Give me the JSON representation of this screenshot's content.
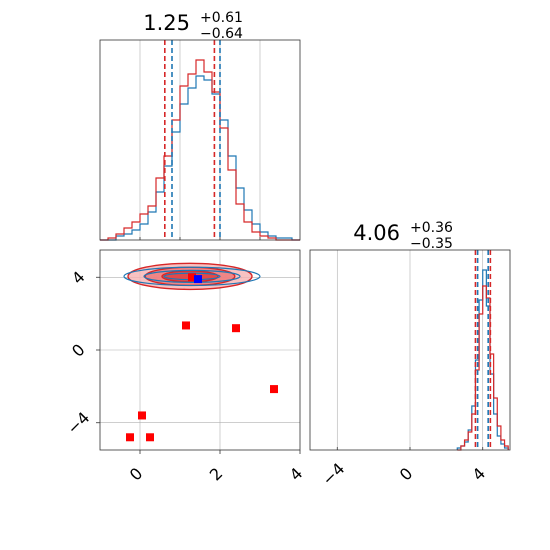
{
  "chart_data": {
    "type": "corner",
    "colors": {
      "blue": "#1f77b4",
      "red": "#d62728",
      "marker_blue": "#0000ff",
      "marker_red": "#ff0000",
      "grid": "#b0b0b0"
    },
    "panels": {
      "p1_hist": {
        "title": {
          "median": "1.25",
          "plus": "+0.61",
          "minus": "−0.64"
        },
        "xlim": [
          -1,
          4
        ],
        "quantile_lines_blue": [
          0.8,
          2.0
        ],
        "quantile_lines_red": [
          0.62,
          1.86
        ],
        "bins": [
          -1.0,
          -0.8,
          -0.6,
          -0.4,
          -0.2,
          0.0,
          0.2,
          0.4,
          0.6,
          0.8,
          1.0,
          1.2,
          1.4,
          1.6,
          1.8,
          2.0,
          2.2,
          2.4,
          2.6,
          2.8,
          3.0,
          3.2,
          3.4,
          3.6,
          3.8,
          4.0
        ],
        "series": [
          {
            "color": "blue",
            "counts": [
              0,
              0,
              2,
              3,
              5,
              8,
              14,
              24,
              37,
              54,
              68,
              76,
              82,
              80,
              73,
              60,
              42,
              26,
              15,
              8,
              4,
              2,
              1,
              1,
              0
            ]
          },
          {
            "color": "red",
            "counts": [
              0,
              1,
              3,
              6,
              9,
              13,
              17,
              31,
              42,
              60,
              77,
              83,
              90,
              84,
              74,
              56,
              35,
              18,
              9,
              4,
              2,
              1,
              0,
              0,
              0
            ]
          }
        ]
      },
      "p2_hist": {
        "title": {
          "median": "4.06",
          "plus": "+0.36",
          "minus": "−0.35"
        },
        "xlim": [
          -5.5,
          5.5
        ],
        "xticks": [
          "−4",
          "0",
          "4"
        ],
        "quantile_lines_blue": [
          3.72,
          4.3
        ],
        "quantile_lines_red": [
          3.6,
          4.42
        ],
        "bins": [
          2.6,
          2.8,
          3.0,
          3.2,
          3.4,
          3.6,
          3.8,
          4.0,
          4.2,
          4.4,
          4.6,
          4.8,
          5.0,
          5.2,
          5.4
        ],
        "series": [
          {
            "color": "blue",
            "counts": [
              1,
              2,
              4,
              10,
              22,
              45,
              75,
              90,
              72,
              38,
              18,
              7,
              3,
              1
            ]
          },
          {
            "color": "red",
            "counts": [
              0,
              2,
              5,
              9,
              18,
              40,
              68,
              82,
              76,
              48,
              26,
              12,
              5,
              2
            ]
          }
        ]
      },
      "p3_scatter": {
        "xlim": [
          -1,
          4
        ],
        "ylim": [
          -5.5,
          5.5
        ],
        "xticks": [
          "0",
          "2",
          "4"
        ],
        "yticks": [
          "−4",
          "0",
          "4"
        ],
        "contours_red": [
          {
            "cx": 1.25,
            "cy": 4.05,
            "rx": 1.55,
            "ry": 0.72
          },
          {
            "cx": 1.25,
            "cy": 4.05,
            "rx": 1.12,
            "ry": 0.5
          },
          {
            "cx": 1.25,
            "cy": 4.05,
            "rx": 0.7,
            "ry": 0.3
          }
        ],
        "contours_blue": [
          {
            "cx": 1.3,
            "cy": 4.05,
            "rx": 1.7,
            "ry": 0.5
          },
          {
            "cx": 1.3,
            "cy": 4.05,
            "rx": 1.2,
            "ry": 0.33
          },
          {
            "cx": 1.3,
            "cy": 4.05,
            "rx": 0.7,
            "ry": 0.18
          }
        ],
        "red_markers": [
          {
            "x": 1.15,
            "y": 1.35
          },
          {
            "x": 2.4,
            "y": 1.2
          },
          {
            "x": 3.35,
            "y": -2.15
          },
          {
            "x": 0.05,
            "y": -3.6
          },
          {
            "x": -0.25,
            "y": -4.8
          },
          {
            "x": 0.25,
            "y": -4.8
          },
          {
            "x": 1.3,
            "y": 4.0
          }
        ],
        "blue_marker": {
          "x": 1.45,
          "y": 3.9
        }
      }
    }
  }
}
